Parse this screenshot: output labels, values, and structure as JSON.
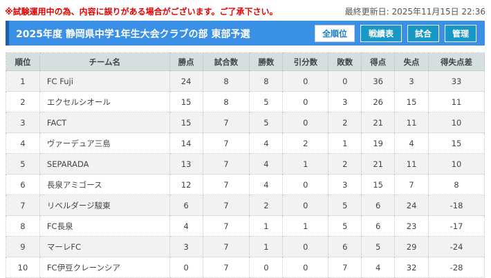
{
  "notice": "※試験運用中の為、内容に誤りがある場合がございます。ご了承下さい。",
  "updated": "最終更新日: 2025年11月15日 22:36",
  "title": "2025年度 静岡県中学1年生大会クラブの部 東部予選",
  "buttons": [
    "全順位",
    "戦績表",
    "試合",
    "管理"
  ],
  "colors": {
    "accent": "#3a90e6",
    "button": "#1798c6",
    "notice": "#e60000"
  },
  "columns": [
    "順位",
    "チーム名",
    "勝点",
    "試合数",
    "勝数",
    "引分数",
    "敗数",
    "得点",
    "失点",
    "得失点差"
  ],
  "rows": [
    [
      "1",
      "FC Fuji",
      "24",
      "8",
      "8",
      "0",
      "0",
      "36",
      "3",
      "33"
    ],
    [
      "2",
      "エクセルシオール",
      "15",
      "8",
      "5",
      "0",
      "3",
      "26",
      "15",
      "11"
    ],
    [
      "3",
      "FACT",
      "15",
      "7",
      "5",
      "0",
      "2",
      "21",
      "11",
      "10"
    ],
    [
      "4",
      "ヴァーデュア三島",
      "14",
      "7",
      "4",
      "2",
      "1",
      "19",
      "4",
      "15"
    ],
    [
      "5",
      "SEPARADA",
      "13",
      "7",
      "4",
      "1",
      "2",
      "21",
      "11",
      "10"
    ],
    [
      "6",
      "長泉アミゴース",
      "12",
      "7",
      "4",
      "0",
      "3",
      "15",
      "7",
      "8"
    ],
    [
      "7",
      "リベルダージ駿東",
      "6",
      "7",
      "2",
      "0",
      "5",
      "6",
      "24",
      "-18"
    ],
    [
      "8",
      "FC長泉",
      "4",
      "7",
      "1",
      "1",
      "5",
      "6",
      "23",
      "-17"
    ],
    [
      "9",
      "マーレFC",
      "3",
      "7",
      "1",
      "0",
      "6",
      "5",
      "29",
      "-24"
    ],
    [
      "10",
      "FC伊豆クレーンシア",
      "0",
      "7",
      "0",
      "0",
      "7",
      "4",
      "32",
      "-28"
    ]
  ]
}
